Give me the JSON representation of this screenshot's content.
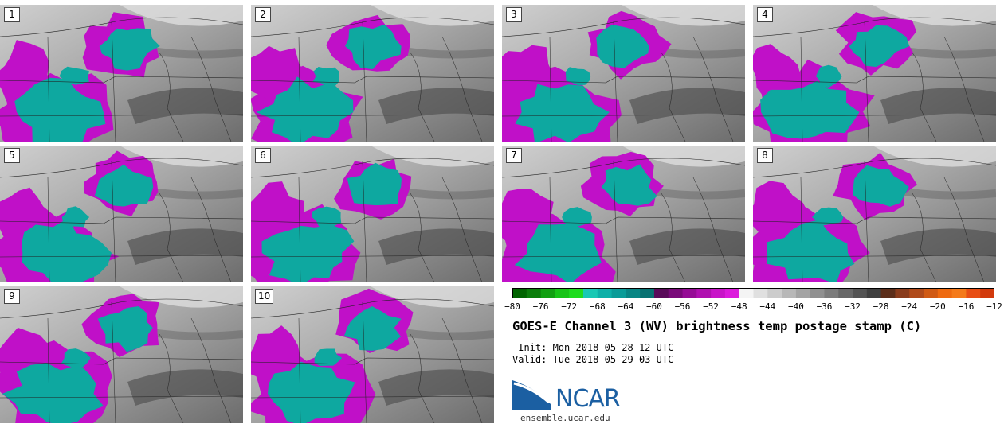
{
  "panels": [
    {
      "label": "1"
    },
    {
      "label": "2"
    },
    {
      "label": "3"
    },
    {
      "label": "4"
    },
    {
      "label": "5"
    },
    {
      "label": "6"
    },
    {
      "label": "7"
    },
    {
      "label": "8"
    },
    {
      "label": "9"
    },
    {
      "label": "10"
    }
  ],
  "colorbar": {
    "colors": [
      "#006400",
      "#0a7d0a",
      "#11a011",
      "#17c417",
      "#1edc1e",
      "#18c8b4",
      "#0eb0a8",
      "#0a9c98",
      "#088684",
      "#087272",
      "#5a0a5a",
      "#7a0a7a",
      "#960c96",
      "#b010b0",
      "#c814c8",
      "#dc1adc",
      "#f4f4f4",
      "#e0e0e0",
      "#cccccc",
      "#b8b8b8",
      "#a4a4a4",
      "#909090",
      "#7c7c7c",
      "#686868",
      "#545454",
      "#404040",
      "#5c2e1a",
      "#8a3c1c",
      "#b04a1a",
      "#d05a14",
      "#ee6a10",
      "#f47a1a",
      "#e84e14",
      "#d23a0c"
    ],
    "tick_labels": [
      "−80",
      "−76",
      "−72",
      "−68",
      "−64",
      "−60",
      "−56",
      "−52",
      "−48",
      "−44",
      "−40",
      "−36",
      "−32",
      "−28",
      "−24",
      "−20",
      "−16",
      "−12"
    ]
  },
  "title": "GOES-E Channel 3 (WV) brightness temp postage stamp (C)",
  "init_line": " Init: Mon 2018-05-28 12 UTC",
  "valid_line": "Valid: Tue 2018-05-29 03 UTC",
  "logo_text": "NCAR",
  "website": "ensemble.ucar.edu"
}
